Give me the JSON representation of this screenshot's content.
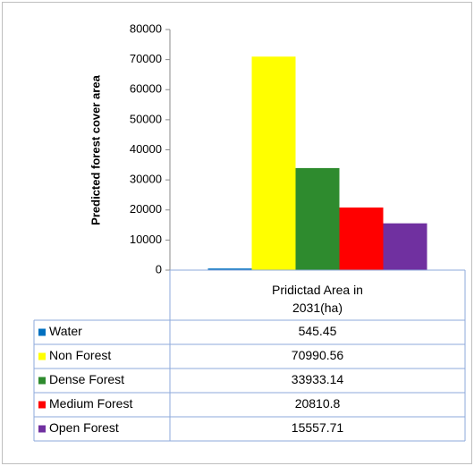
{
  "chart_data": {
    "type": "bar",
    "ylabel": "Predicted  forest cover area",
    "categories": [
      "Pridictad Area in 2031(ha)"
    ],
    "series": [
      {
        "name": "Water",
        "color": "#0070c0",
        "values": [
          545.45
        ]
      },
      {
        "name": "Non Forest",
        "color": "#ffff00",
        "values": [
          70990.56
        ]
      },
      {
        "name": "Dense Forest",
        "color": "#2e8b2e",
        "values": [
          33933.14
        ]
      },
      {
        "name": "Medium Forest",
        "color": "#ff0000",
        "values": [
          20810.8
        ]
      },
      {
        "name": "Open  Forest",
        "color": "#7030a0",
        "values": [
          15557.71
        ]
      }
    ],
    "ylim": [
      0,
      80000
    ],
    "yticks": [
      0,
      10000,
      20000,
      30000,
      40000,
      50000,
      60000,
      70000,
      80000
    ],
    "grid": false,
    "data_table": true
  }
}
